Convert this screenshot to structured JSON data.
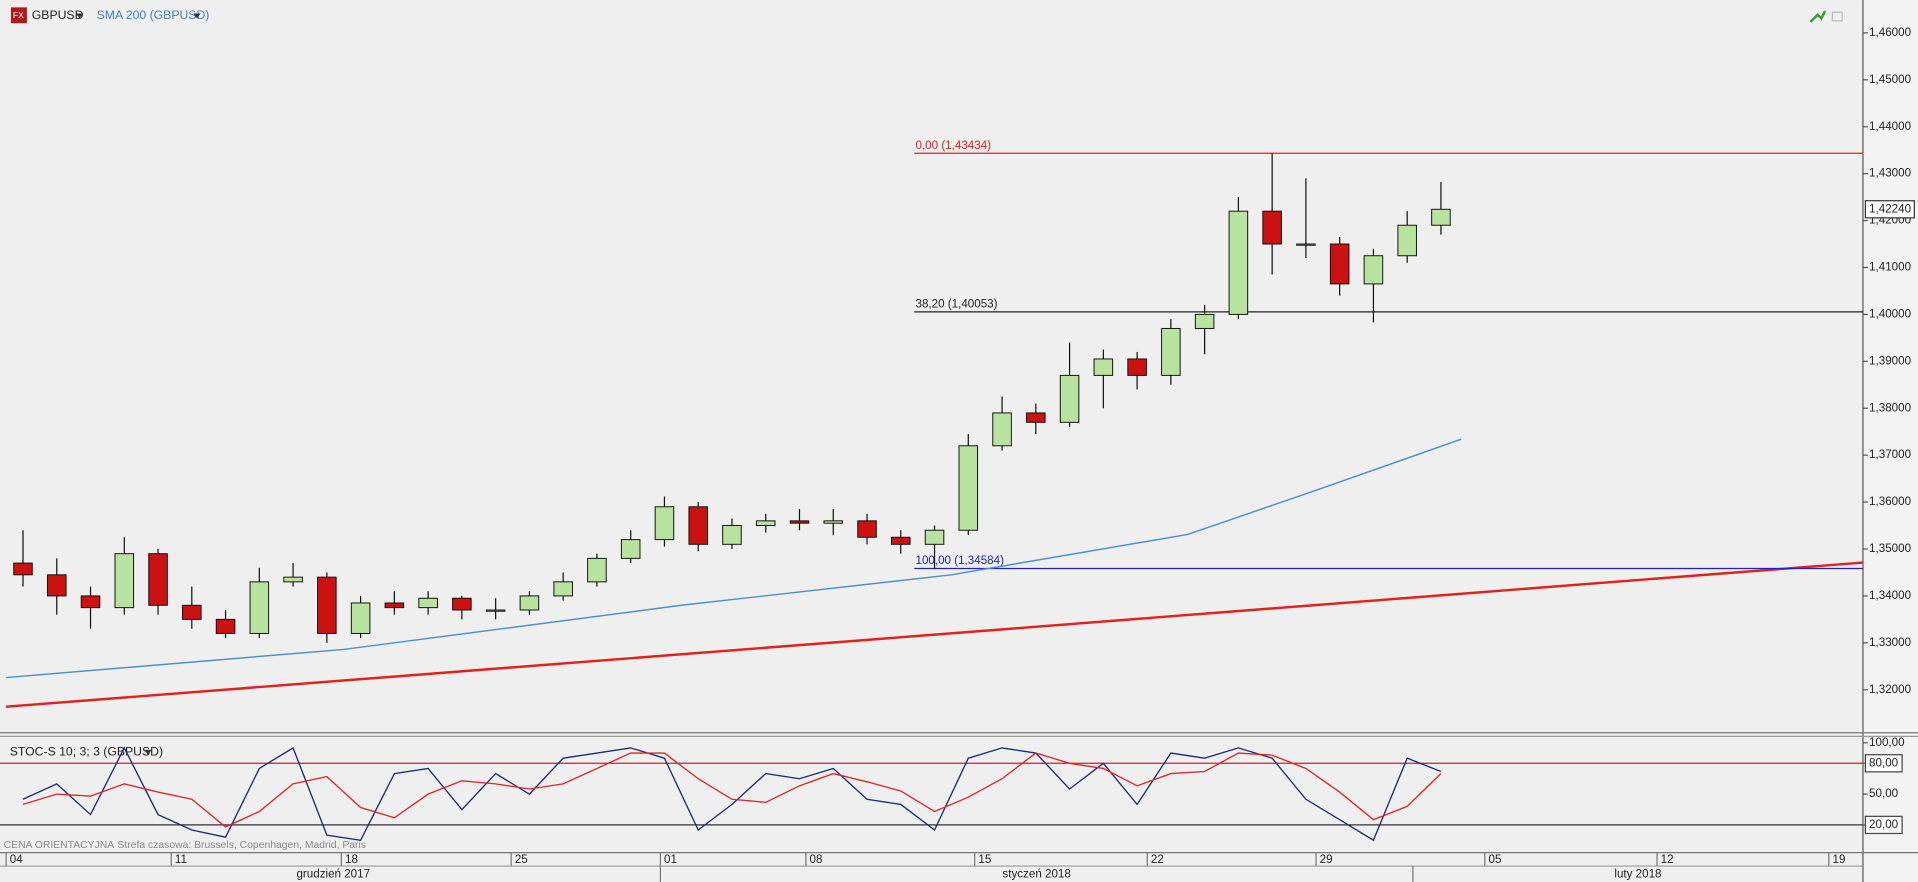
{
  "chart_data": [
    {
      "type": "candlestick",
      "title": "GBPUSD",
      "x": [
        0.5,
        1.5,
        2.5,
        3.5,
        4.5,
        5.5,
        6.5,
        7.5,
        8.5,
        9.5,
        10.5,
        11.5,
        12.5,
        13.5,
        14.5,
        15.5,
        16.5,
        17.5,
        18.5,
        19.5,
        20.5,
        21.5,
        22.5,
        23.5,
        24.5,
        25.5,
        26.5,
        27.5,
        28.5,
        29.5,
        30.5,
        31.5,
        32.5,
        33.5,
        34.5,
        35.5,
        36.5,
        37.5,
        38.5,
        39.5,
        40.5,
        41.5,
        42.5
      ],
      "open": [
        1.347,
        1.3445,
        1.34,
        1.3375,
        1.349,
        1.338,
        1.335,
        1.332,
        1.343,
        1.344,
        1.332,
        1.3385,
        1.3375,
        1.3395,
        1.337,
        1.337,
        1.34,
        1.343,
        1.348,
        1.352,
        1.359,
        1.351,
        1.355,
        1.356,
        1.3555,
        1.356,
        1.3525,
        1.351,
        1.354,
        1.372,
        1.379,
        1.377,
        1.387,
        1.3905,
        1.387,
        1.397,
        1.4,
        1.422,
        1.415,
        1.415,
        1.4065,
        1.4125,
        1.419
      ],
      "high": [
        1.354,
        1.348,
        1.342,
        1.3525,
        1.35,
        1.342,
        1.337,
        1.346,
        1.347,
        1.345,
        1.34,
        1.341,
        1.341,
        1.34,
        1.3395,
        1.341,
        1.345,
        1.349,
        1.354,
        1.3612,
        1.36,
        1.3565,
        1.3575,
        1.3585,
        1.3585,
        1.3575,
        1.354,
        1.355,
        1.3745,
        1.3825,
        1.381,
        1.394,
        1.3925,
        1.392,
        1.399,
        1.402,
        1.425,
        1.4343,
        1.429,
        1.4165,
        1.414,
        1.422,
        1.4282
      ],
      "low": [
        1.342,
        1.336,
        1.333,
        1.336,
        1.336,
        1.333,
        1.331,
        1.331,
        1.342,
        1.33,
        1.331,
        1.336,
        1.336,
        1.335,
        1.335,
        1.336,
        1.339,
        1.342,
        1.347,
        1.3505,
        1.3495,
        1.35,
        1.3535,
        1.354,
        1.353,
        1.351,
        1.349,
        1.3458,
        1.353,
        1.371,
        1.3745,
        1.376,
        1.38,
        1.384,
        1.385,
        1.3915,
        1.399,
        1.4085,
        1.412,
        1.404,
        1.3983,
        1.411,
        1.417
      ],
      "close": [
        1.3445,
        1.34,
        1.3375,
        1.349,
        1.338,
        1.335,
        1.332,
        1.343,
        1.344,
        1.332,
        1.3385,
        1.3375,
        1.3395,
        1.337,
        1.337,
        1.34,
        1.343,
        1.348,
        1.352,
        1.359,
        1.351,
        1.355,
        1.356,
        1.3555,
        1.356,
        1.3525,
        1.351,
        1.354,
        1.372,
        1.379,
        1.377,
        1.387,
        1.3905,
        1.387,
        1.397,
        1.4,
        1.422,
        1.415,
        1.415,
        1.4065,
        1.4125,
        1.419,
        1.4224
      ],
      "up_color": "#b8e39e",
      "down_color": "#cc1111",
      "series": [
        {
          "name": "SMA 200 (GBPUSD)",
          "color": "#4a8fd6",
          "x": [
            0,
            10,
            20,
            28,
            35,
            39,
            43.1
          ],
          "values": [
            1.3226,
            1.3286,
            1.338,
            1.3445,
            1.3531,
            1.363,
            1.3734
          ]
        }
      ],
      "trendline": {
        "color": "#e3201b",
        "x": [
          0,
          55
        ],
        "values": [
          1.3164,
          1.3471
        ]
      },
      "levels": [
        {
          "value": 1.43434,
          "label": "0,00 (1,43434)",
          "color": "#e02020",
          "x_start": 26.9
        },
        {
          "value": 1.40053,
          "label": "38,20 (1,40053)",
          "color": "#222222",
          "x_start": 26.9
        },
        {
          "value": 1.34584,
          "label": "100,00 (1,34584)",
          "color": "#2020c8",
          "x_start": 26.9
        }
      ],
      "last_price": {
        "value": 1.4224,
        "label": "1,42240"
      },
      "xlim": [
        0,
        55
      ],
      "ylim": [
        1.3111,
        1.467
      ],
      "xticks": [
        {
          "value": 0,
          "label": "04"
        },
        {
          "value": 4.89,
          "label": "11"
        },
        {
          "value": 9.93,
          "label": "18"
        },
        {
          "value": 14.96,
          "label": "25"
        },
        {
          "value": 19.38,
          "label": "01"
        },
        {
          "value": 23.69,
          "label": "08"
        },
        {
          "value": 28.69,
          "label": "15"
        },
        {
          "value": 33.8,
          "label": "22"
        },
        {
          "value": 38.8,
          "label": "29"
        },
        {
          "value": 43.8,
          "label": "05"
        },
        {
          "value": 48.9,
          "label": "12"
        },
        {
          "value": 53.99,
          "label": "19"
        }
      ],
      "yticks": [
        {
          "value": 1.32,
          "label": "1,32000"
        },
        {
          "value": 1.33,
          "label": "1,33000"
        },
        {
          "value": 1.34,
          "label": "1,34000"
        },
        {
          "value": 1.35,
          "label": "1,35000"
        },
        {
          "value": 1.36,
          "label": "1,36000"
        },
        {
          "value": 1.37,
          "label": "1,37000"
        },
        {
          "value": 1.38,
          "label": "1,38000"
        },
        {
          "value": 1.39,
          "label": "1,39000"
        },
        {
          "value": 1.4,
          "label": "1,40000"
        },
        {
          "value": 1.41,
          "label": "1,41000"
        },
        {
          "value": 1.42,
          "label": "1,42000"
        },
        {
          "value": 1.43,
          "label": "1,43000"
        },
        {
          "value": 1.44,
          "label": "1,44000"
        },
        {
          "value": 1.45,
          "label": "1,45000"
        },
        {
          "value": 1.46,
          "label": "1,46000"
        }
      ],
      "months": [
        {
          "label": "grudzień 2017",
          "start": 0
        },
        {
          "label": "styczeń 2018",
          "start": 19.38
        },
        {
          "label": "luty 2018",
          "start": 41.67
        }
      ]
    },
    {
      "type": "line",
      "title": "STOC-S 10; 3; 3 (GBPUSD)",
      "x": [
        0.5,
        1.5,
        2.5,
        3.5,
        4.5,
        5.5,
        6.5,
        7.5,
        8.5,
        9.5,
        10.5,
        11.5,
        12.5,
        13.5,
        14.5,
        15.5,
        16.5,
        17.5,
        18.5,
        19.5,
        20.5,
        21.5,
        22.5,
        23.5,
        24.5,
        25.5,
        26.5,
        27.5,
        28.5,
        29.5,
        30.5,
        31.5,
        32.5,
        33.5,
        34.5,
        35.5,
        36.5,
        37.5,
        38.5,
        39.5,
        40.5,
        41.5,
        42.5
      ],
      "series": [
        {
          "color": "#1c2d6e",
          "values": [
            45,
            60,
            30,
            95,
            30,
            15,
            8,
            75,
            95,
            10,
            5,
            70,
            75,
            35,
            70,
            50,
            85,
            90,
            95,
            85,
            15,
            40,
            70,
            65,
            75,
            45,
            40,
            15,
            85,
            95,
            90,
            55,
            80,
            40,
            90,
            85,
            95,
            85,
            45,
            25,
            5,
            85,
            72
          ]
        },
        {
          "color": "#e0242a",
          "values": [
            40,
            50,
            48,
            60,
            52,
            45,
            18,
            33,
            60,
            67,
            37,
            27,
            50,
            63,
            60,
            55,
            60,
            75,
            90,
            90,
            65,
            45,
            42,
            58,
            70,
            62,
            53,
            33,
            47,
            65,
            90,
            80,
            75,
            58,
            70,
            72,
            90,
            88,
            75,
            52,
            25,
            38,
            70
          ]
        }
      ],
      "levels": [
        {
          "value": 80,
          "color": "#d42020"
        },
        {
          "value": 20,
          "color": "#333333"
        }
      ],
      "xlim": [
        0,
        55
      ],
      "ylim": [
        -7,
        105
      ],
      "yticks": [
        {
          "value": 100,
          "label": "100,00"
        },
        {
          "value": 80,
          "label": "80,00"
        },
        {
          "value": 50,
          "label": "50,00"
        },
        {
          "value": 20,
          "label": "20,00"
        }
      ],
      "highlight_ticks": [
        1,
        3
      ]
    }
  ],
  "footer": {
    "price_type": "CENA ORIENTACYJNA",
    "timezone": "Strefa czasowa: Brussels, Copenhagen, Madrid, Paris"
  }
}
